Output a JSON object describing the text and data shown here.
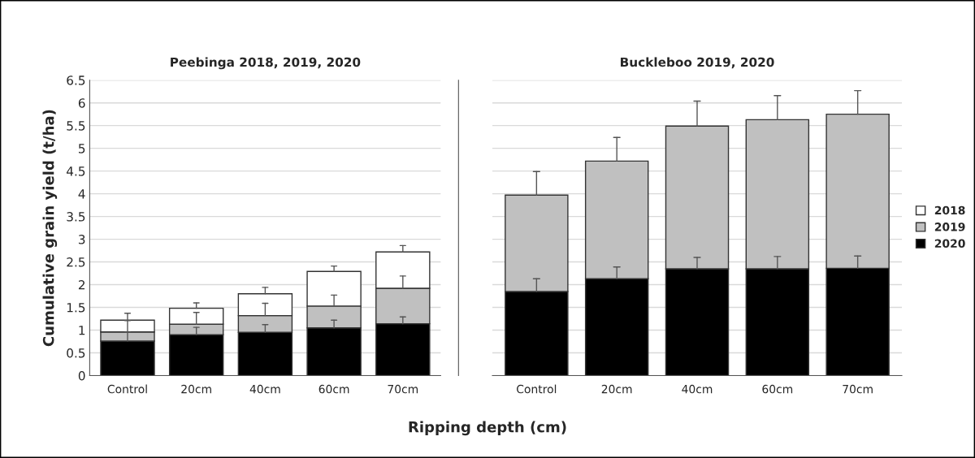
{
  "chart_data": [
    {
      "type": "bar",
      "title": "Peebinga 2018, 2019, 2020",
      "ylabel": "Cumulative grain yield (t/ha)",
      "xlabel": "Ripping depth (cm)",
      "stacked": true,
      "categories": [
        "Control",
        "20cm",
        "40cm",
        "60cm",
        "70cm"
      ],
      "series": [
        {
          "name": "2020",
          "color": "#000000",
          "values": [
            0.76,
            0.9,
            0.95,
            1.05,
            1.14
          ],
          "errors": [
            [
              0.76,
              0.95
            ],
            [
              0.9,
              1.06
            ],
            [
              0.95,
              1.12
            ],
            [
              1.05,
              1.22
            ],
            [
              1.14,
              1.29
            ]
          ]
        },
        {
          "name": "2019",
          "color": "#c0c0c0",
          "values": [
            0.2,
            0.23,
            0.37,
            0.48,
            0.78
          ],
          "errors": [
            [
              0.96,
              1.21
            ],
            [
              1.13,
              1.39
            ],
            [
              1.32,
              1.59
            ],
            [
              1.53,
              1.77
            ],
            [
              1.92,
              2.19
            ]
          ]
        },
        {
          "name": "2018",
          "color": "#ffffff",
          "values": [
            0.26,
            0.35,
            0.48,
            0.76,
            0.8
          ],
          "errors": [
            [
              1.22,
              1.37
            ],
            [
              1.48,
              1.6
            ],
            [
              1.8,
              1.94
            ],
            [
              2.29,
              2.41
            ],
            [
              2.72,
              2.86
            ]
          ]
        }
      ],
      "ylim": [
        0,
        6.5
      ],
      "yticks": [
        0,
        0.5,
        1,
        1.5,
        2,
        2.5,
        3,
        3.5,
        4,
        4.5,
        5,
        5.5,
        6,
        6.5
      ],
      "grid": "y",
      "legend": "right"
    },
    {
      "type": "bar",
      "title": "Buckleboo 2019, 2020",
      "stacked": true,
      "categories": [
        "Control",
        "20cm",
        "40cm",
        "60cm",
        "70cm"
      ],
      "series": [
        {
          "name": "2020",
          "color": "#000000",
          "values": [
            1.85,
            2.13,
            2.35,
            2.35,
            2.36
          ],
          "errors": [
            [
              1.85,
              2.13
            ],
            [
              2.13,
              2.39
            ],
            [
              2.35,
              2.6
            ],
            [
              2.35,
              2.62
            ],
            [
              2.36,
              2.63
            ]
          ]
        },
        {
          "name": "2019",
          "color": "#c0c0c0",
          "values": [
            2.12,
            2.59,
            3.14,
            3.28,
            3.39
          ],
          "errors": [
            [
              3.97,
              4.49
            ],
            [
              4.72,
              5.24
            ],
            [
              5.49,
              6.04
            ],
            [
              5.63,
              6.16
            ],
            [
              5.75,
              6.27
            ]
          ]
        },
        {
          "name": "2018",
          "color": "#ffffff",
          "values": [
            null,
            null,
            null,
            null,
            null
          ]
        }
      ],
      "ylim": [
        0,
        6.5
      ],
      "yticks": [
        0,
        0.5,
        1,
        1.5,
        2,
        2.5,
        3,
        3.5,
        4,
        4.5,
        5,
        5.5,
        6,
        6.5
      ],
      "grid": "y",
      "tick_labels": "x",
      "legend": "right"
    }
  ]
}
